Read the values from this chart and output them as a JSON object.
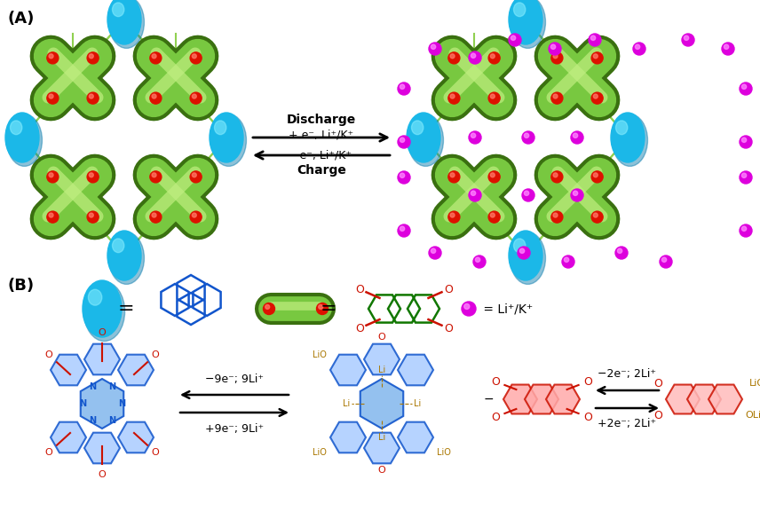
{
  "fig_width": 8.56,
  "fig_height": 5.94,
  "dpi": 100,
  "label_A": "(A)",
  "label_B": "(B)",
  "background_color": "#ffffff",
  "cyan_body": "#1BB8E8",
  "cyan_dark": "#0077AA",
  "cyan_hi": "#88EEFF",
  "green_body": "#78C840",
  "green_dark": "#3A7010",
  "green_hi": "#C0EE80",
  "green_line": "#90D050",
  "red_body": "#DD1100",
  "red_hi": "#FF7766",
  "mag_body": "#DD00DD",
  "mag_hi": "#FF88FF",
  "text_color": "#000000",
  "blue_mol": "#1155CC",
  "green_mol": "#117700",
  "red_mol": "#CC1100",
  "orange_mol": "#AA7700",
  "label_fs": 13,
  "discharge_text": "Discharge",
  "charge_text": "Charge",
  "arrow_text1": "+ e⁻, Li⁺/K⁺",
  "arrow_text2": "−e⁻, Li⁺/K⁺",
  "legend_li_text": " = Li⁺/K⁺",
  "rxn1": "+9e⁻; 9Li⁺",
  "rxn2": "−9e⁻; 9Li⁺",
  "rxn3": "+2e⁻; 2Li⁺",
  "rxn4": "−2e⁻; 2Li⁺"
}
